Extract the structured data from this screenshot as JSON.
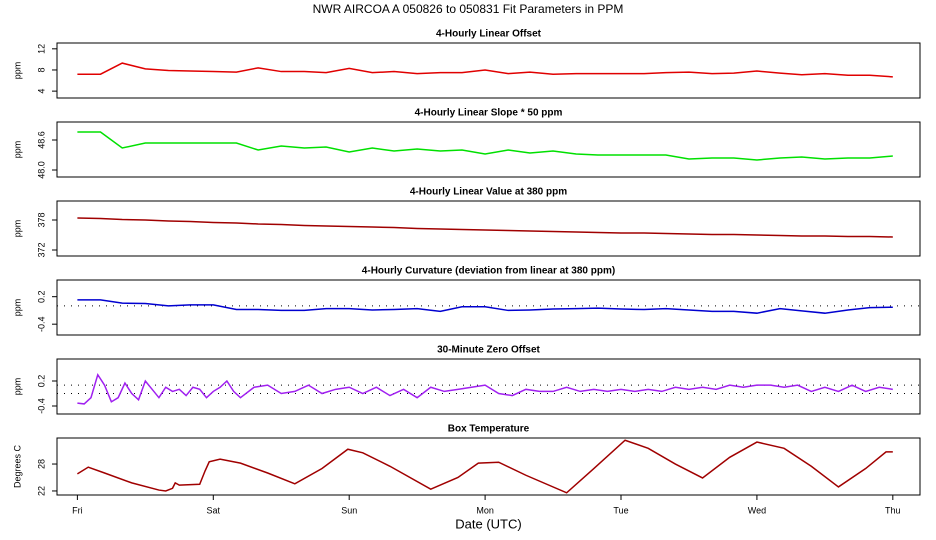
{
  "title": "NWR   AIRCOA A   050826 to 050831   Fit Parameters in PPM",
  "chart_data": [
    {
      "type": "line",
      "title": "4-Hourly Linear Offset",
      "ylabel": "ppm",
      "color": "#e00000",
      "xlim": [
        -0.15,
        6.2
      ],
      "ylim": [
        2.7,
        13.1
      ],
      "yticks": [
        4,
        8,
        12
      ],
      "x": [
        0,
        0.17,
        0.33,
        0.5,
        0.67,
        0.83,
        1,
        1.17,
        1.33,
        1.5,
        1.67,
        1.83,
        2,
        2.17,
        2.33,
        2.5,
        2.67,
        2.83,
        3,
        3.17,
        3.33,
        3.5,
        3.67,
        3.83,
        4,
        4.17,
        4.33,
        4.5,
        4.67,
        4.83,
        5,
        5.17,
        5.33,
        5.5,
        5.67,
        5.83,
        6
      ],
      "values": [
        7.2,
        7.2,
        9.3,
        8.2,
        7.9,
        7.8,
        7.7,
        7.6,
        8.4,
        7.7,
        7.7,
        7.5,
        8.3,
        7.5,
        7.7,
        7.3,
        7.5,
        7.5,
        8.0,
        7.3,
        7.6,
        7.2,
        7.3,
        7.3,
        7.3,
        7.3,
        7.5,
        7.6,
        7.3,
        7.4,
        7.8,
        7.4,
        7.1,
        7.3,
        7.0,
        7.0,
        6.7
      ]
    },
    {
      "type": "line",
      "title": "4-Hourly Linear Slope * 50 ppm",
      "ylabel": "ppm",
      "color": "#00e000",
      "xlim": [
        -0.15,
        6.2
      ],
      "ylim": [
        47.86,
        48.96
      ],
      "yticks": [
        {
          "value": 48,
          "label": "48.0"
        },
        48.6
      ],
      "x": [
        0,
        0.17,
        0.33,
        0.5,
        0.67,
        0.83,
        1,
        1.17,
        1.33,
        1.5,
        1.67,
        1.83,
        2,
        2.17,
        2.33,
        2.5,
        2.67,
        2.83,
        3,
        3.17,
        3.33,
        3.5,
        3.67,
        3.83,
        4,
        4.17,
        4.33,
        4.5,
        4.67,
        4.83,
        5,
        5.17,
        5.33,
        5.5,
        5.67,
        5.83,
        6
      ],
      "values": [
        48.76,
        48.76,
        48.44,
        48.54,
        48.54,
        48.54,
        48.54,
        48.54,
        48.4,
        48.48,
        48.44,
        48.46,
        48.36,
        48.44,
        48.38,
        48.42,
        48.38,
        48.4,
        48.32,
        48.4,
        48.34,
        48.38,
        48.32,
        48.3,
        48.3,
        48.3,
        48.3,
        48.22,
        48.24,
        48.24,
        48.2,
        48.24,
        48.26,
        48.22,
        48.24,
        48.24,
        48.28
      ]
    },
    {
      "type": "line",
      "title": "4-Hourly Linear Value at 380 ppm",
      "ylabel": "ppm",
      "color": "#a00000",
      "xlim": [
        -0.15,
        6.2
      ],
      "ylim": [
        370.8,
        381.8
      ],
      "yticks": [
        372,
        378
      ],
      "x": [
        0,
        0.17,
        0.33,
        0.5,
        0.67,
        0.83,
        1,
        1.17,
        1.33,
        1.5,
        1.67,
        1.83,
        2,
        2.17,
        2.33,
        2.5,
        2.67,
        2.83,
        3,
        3.17,
        3.33,
        3.5,
        3.67,
        3.83,
        4,
        4.17,
        4.33,
        4.5,
        4.67,
        4.83,
        5,
        5.17,
        5.33,
        5.5,
        5.67,
        5.83,
        6
      ],
      "values": [
        378.4,
        378.3,
        378.1,
        378.0,
        377.8,
        377.7,
        377.5,
        377.4,
        377.2,
        377.1,
        376.9,
        376.8,
        376.7,
        376.6,
        376.5,
        376.3,
        376.2,
        376.1,
        376.0,
        375.9,
        375.8,
        375.7,
        375.6,
        375.5,
        375.4,
        375.4,
        375.3,
        375.2,
        375.1,
        375.1,
        375.0,
        374.9,
        374.8,
        374.8,
        374.7,
        374.7,
        374.6
      ]
    },
    {
      "type": "line",
      "title": "4-Hourly Curvature (deviation from linear at 380 ppm)",
      "ylabel": "ppm",
      "color": "#0000d0",
      "xlim": [
        -0.15,
        6.2
      ],
      "ylim": [
        -0.636,
        0.564
      ],
      "yticks": [
        -0.4,
        0.2
      ],
      "hlines": [
        0
      ],
      "x": [
        0,
        0.17,
        0.33,
        0.5,
        0.67,
        0.83,
        1,
        1.17,
        1.33,
        1.5,
        1.67,
        1.83,
        2,
        2.17,
        2.33,
        2.5,
        2.67,
        2.83,
        3,
        3.17,
        3.33,
        3.5,
        3.67,
        3.83,
        4,
        4.17,
        4.33,
        4.5,
        4.67,
        4.83,
        5,
        5.17,
        5.33,
        5.5,
        5.67,
        5.83,
        6
      ],
      "values": [
        0.13,
        0.13,
        0.06,
        0.05,
        0.0,
        0.02,
        0.02,
        -0.08,
        -0.08,
        -0.1,
        -0.1,
        -0.06,
        -0.06,
        -0.09,
        -0.08,
        -0.06,
        -0.12,
        -0.02,
        -0.02,
        -0.1,
        -0.09,
        -0.07,
        -0.06,
        -0.05,
        -0.07,
        -0.08,
        -0.06,
        -0.09,
        -0.12,
        -0.12,
        -0.16,
        -0.06,
        -0.11,
        -0.16,
        -0.09,
        -0.04,
        -0.03
      ]
    },
    {
      "type": "line",
      "title": "30-Minute Zero Offset",
      "ylabel": "ppm",
      "color": "#a020f0",
      "xlim": [
        -0.15,
        6.2
      ],
      "ylim": [
        -0.592,
        0.728
      ],
      "yticks": [
        -0.4,
        0.2
      ],
      "hlines": [
        0.1,
        -0.1
      ],
      "x": [
        0,
        0.05,
        0.1,
        0.15,
        0.2,
        0.25,
        0.3,
        0.35,
        0.4,
        0.45,
        0.5,
        0.55,
        0.6,
        0.65,
        0.7,
        0.75,
        0.8,
        0.85,
        0.9,
        0.95,
        1,
        1.05,
        1.1,
        1.15,
        1.2,
        1.3,
        1.4,
        1.5,
        1.6,
        1.7,
        1.8,
        1.9,
        2,
        2.1,
        2.2,
        2.3,
        2.4,
        2.5,
        2.6,
        2.7,
        2.8,
        2.9,
        3,
        3.1,
        3.2,
        3.3,
        3.4,
        3.5,
        3.6,
        3.7,
        3.8,
        3.9,
        4,
        4.1,
        4.2,
        4.3,
        4.4,
        4.5,
        4.6,
        4.7,
        4.8,
        4.9,
        5,
        5.1,
        5.2,
        5.3,
        5.4,
        5.5,
        5.6,
        5.7,
        5.8,
        5.9,
        6
      ],
      "values": [
        -0.33,
        -0.35,
        -0.2,
        0.35,
        0.1,
        -0.3,
        -0.2,
        0.15,
        -0.1,
        -0.25,
        0.2,
        0.0,
        -0.2,
        0.05,
        -0.05,
        0.0,
        -0.15,
        0.05,
        0.0,
        -0.2,
        -0.05,
        0.05,
        0.2,
        -0.05,
        -0.2,
        0.05,
        0.1,
        -0.1,
        -0.05,
        0.1,
        -0.1,
        0.0,
        0.05,
        -0.1,
        0.05,
        -0.15,
        0.0,
        -0.2,
        0.05,
        -0.05,
        0.0,
        0.05,
        0.1,
        -0.1,
        -0.15,
        0.0,
        -0.05,
        -0.05,
        0.05,
        -0.05,
        0.0,
        -0.05,
        0.0,
        -0.05,
        0.0,
        -0.05,
        0.05,
        0.0,
        0.05,
        0.0,
        0.1,
        0.05,
        0.1,
        0.1,
        0.05,
        0.1,
        -0.05,
        0.05,
        -0.05,
        0.1,
        -0.05,
        0.05,
        0.0
      ]
    },
    {
      "type": "line",
      "title": "Box Temperature",
      "ylabel": "Degrees C",
      "color": "#a00000",
      "xlim": [
        -0.15,
        6.2
      ],
      "ylim": [
        21.1,
        33.8
      ],
      "yticks": [
        22,
        28
      ],
      "xlabel": "Date (UTC)",
      "xticks": [
        {
          "value": 0,
          "label": "Fri"
        },
        {
          "value": 1,
          "label": "Sat"
        },
        {
          "value": 2,
          "label": "Sun"
        },
        {
          "value": 3,
          "label": "Mon"
        },
        {
          "value": 4,
          "label": "Tue"
        },
        {
          "value": 5,
          "label": "Wed"
        },
        {
          "value": 6,
          "label": "Thu"
        }
      ],
      "x": [
        0,
        0.08,
        0.2,
        0.4,
        0.6,
        0.65,
        0.7,
        0.72,
        0.75,
        0.9,
        0.94,
        0.97,
        1.05,
        1.2,
        1.4,
        1.6,
        1.8,
        1.99,
        2.1,
        2.3,
        2.6,
        2.8,
        2.95,
        3.1,
        3.3,
        3.6,
        3.8,
        4.03,
        4.2,
        4.4,
        4.6,
        4.8,
        5.0,
        5.2,
        5.4,
        5.6,
        5.8,
        5.95,
        6.0
      ],
      "values": [
        25.8,
        27.3,
        26.0,
        23.8,
        22.2,
        22.0,
        22.6,
        23.8,
        23.3,
        23.5,
        26.5,
        28.5,
        29.1,
        28.2,
        26.0,
        23.6,
        27.0,
        31.3,
        30.5,
        27.5,
        22.4,
        25.0,
        28.2,
        28.4,
        25.5,
        21.6,
        27.0,
        33.3,
        31.5,
        28.0,
        24.9,
        29.5,
        32.9,
        31.5,
        27.5,
        22.9,
        27.0,
        30.7,
        30.7
      ]
    }
  ]
}
